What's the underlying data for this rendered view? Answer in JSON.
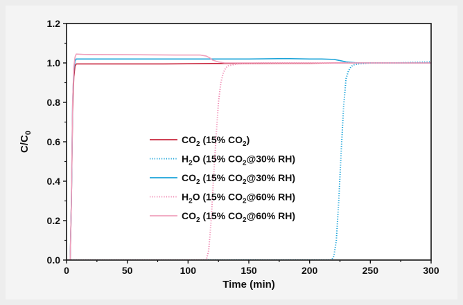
{
  "chart_data": {
    "type": "line",
    "xlabel": "Time (min)",
    "ylabel": {
      "main": "C/C",
      "sub": "0"
    },
    "xlim": [
      0,
      300
    ],
    "ylim": [
      0,
      1.2
    ],
    "xticks": [
      0,
      50,
      100,
      150,
      200,
      250,
      300
    ],
    "yticks": [
      0.0,
      0.2,
      0.4,
      0.6,
      0.8,
      1.0,
      1.2
    ],
    "ytick_labels": [
      "0.0",
      "0.2",
      "0.4",
      "0.6",
      "0.8",
      "1.0",
      "1.2"
    ],
    "grid": false,
    "legend_position": "center",
    "series": [
      {
        "name": "CO2 (15% CO2)",
        "legend": [
          [
            "CO",
            ""
          ],
          [
            "2",
            "sub"
          ],
          [
            " (15% CO",
            ""
          ],
          [
            "2",
            "sub"
          ],
          [
            ")",
            ""
          ]
        ],
        "color": "#c8243c",
        "dash": "solid",
        "x": [
          0,
          3,
          4,
          5,
          6,
          7,
          8,
          15,
          30,
          50,
          80,
          100,
          120,
          150,
          180,
          200,
          220,
          250,
          280,
          300
        ],
        "y": [
          0,
          0,
          0.3,
          0.75,
          0.93,
          0.985,
          0.995,
          0.995,
          0.995,
          0.995,
          0.995,
          0.996,
          0.997,
          0.997,
          0.998,
          0.998,
          1.0,
          1.0,
          1.0,
          1.0
        ]
      },
      {
        "name": "H2O (15% CO2@30% RH)",
        "legend": [
          [
            "H",
            ""
          ],
          [
            "2",
            "sub"
          ],
          [
            "O (15% CO",
            ""
          ],
          [
            "2",
            "sub"
          ],
          [
            "@30% RH)",
            ""
          ]
        ],
        "color": "#1aa3d9",
        "dash": "dotted",
        "x": [
          0,
          218,
          220,
          222,
          224,
          226,
          228,
          230,
          232,
          234,
          236,
          240,
          250,
          270,
          300
        ],
        "y": [
          0,
          0,
          0.02,
          0.1,
          0.3,
          0.55,
          0.78,
          0.92,
          0.96,
          0.98,
          0.99,
          0.995,
          1.0,
          1.0,
          1.005
        ]
      },
      {
        "name": "CO2 (15% CO2@30% RH)",
        "legend": [
          [
            "CO",
            ""
          ],
          [
            "2",
            "sub"
          ],
          [
            " (15% CO",
            ""
          ],
          [
            "2",
            "sub"
          ],
          [
            "@30% RH)",
            ""
          ]
        ],
        "color": "#1aa3d9",
        "dash": "solid",
        "x": [
          0,
          3,
          4,
          5,
          6,
          7,
          8,
          15,
          40,
          80,
          120,
          150,
          180,
          200,
          210,
          220,
          225,
          230,
          240,
          260,
          300
        ],
        "y": [
          0,
          0,
          0.3,
          0.8,
          0.97,
          1.01,
          1.02,
          1.02,
          1.02,
          1.02,
          1.02,
          1.02,
          1.022,
          1.02,
          1.02,
          1.018,
          1.012,
          1.005,
          1.0,
          1.0,
          1.0
        ]
      },
      {
        "name": "H2O (15% CO2@60% RH)",
        "legend": [
          [
            "H",
            ""
          ],
          [
            "2",
            "sub"
          ],
          [
            "O (15% CO",
            ""
          ],
          [
            "2",
            "sub"
          ],
          [
            "@60% RH)",
            ""
          ]
        ],
        "color": "#f08cb4",
        "dash": "dotted",
        "x": [
          0,
          115,
          117,
          119,
          121,
          123,
          125,
          127,
          129,
          131,
          133,
          140,
          160,
          200,
          300
        ],
        "y": [
          0,
          0,
          0.05,
          0.2,
          0.42,
          0.62,
          0.8,
          0.9,
          0.95,
          0.975,
          0.985,
          0.995,
          1.0,
          1.0,
          1.0
        ]
      },
      {
        "name": "CO2 (15% CO2@60% RH)",
        "legend": [
          [
            "CO",
            ""
          ],
          [
            "2",
            "sub"
          ],
          [
            " (15% CO",
            ""
          ],
          [
            "2",
            "sub"
          ],
          [
            "@60% RH)",
            ""
          ]
        ],
        "color": "#f0a0bc",
        "dash": "solid",
        "x": [
          0,
          3,
          4,
          5,
          6,
          7,
          8,
          15,
          50,
          90,
          110,
          115,
          118,
          120,
          125,
          130,
          150,
          200,
          300
        ],
        "y": [
          0,
          0,
          0.3,
          0.8,
          0.98,
          1.03,
          1.045,
          1.043,
          1.042,
          1.04,
          1.04,
          1.035,
          1.025,
          1.015,
          1.005,
          1.0,
          1.0,
          1.0,
          1.0
        ]
      }
    ]
  }
}
